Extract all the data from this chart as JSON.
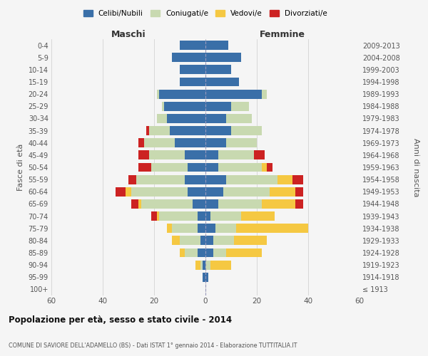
{
  "age_groups": [
    "100+",
    "95-99",
    "90-94",
    "85-89",
    "80-84",
    "75-79",
    "70-74",
    "65-69",
    "60-64",
    "55-59",
    "50-54",
    "45-49",
    "40-44",
    "35-39",
    "30-34",
    "25-29",
    "20-24",
    "15-19",
    "10-14",
    "5-9",
    "0-4"
  ],
  "birth_years": [
    "≤ 1913",
    "1914-1918",
    "1919-1923",
    "1924-1928",
    "1929-1933",
    "1934-1938",
    "1939-1943",
    "1944-1948",
    "1949-1953",
    "1954-1958",
    "1959-1963",
    "1964-1968",
    "1969-1973",
    "1974-1978",
    "1979-1983",
    "1984-1988",
    "1989-1993",
    "1994-1998",
    "1999-2003",
    "2004-2008",
    "2009-2013"
  ],
  "maschi": {
    "celibi": [
      0,
      1,
      1,
      3,
      2,
      3,
      3,
      5,
      7,
      8,
      7,
      8,
      12,
      14,
      15,
      16,
      18,
      10,
      10,
      13,
      10
    ],
    "coniugati": [
      0,
      0,
      1,
      5,
      8,
      10,
      15,
      20,
      22,
      19,
      14,
      14,
      12,
      8,
      4,
      1,
      1,
      0,
      0,
      0,
      0
    ],
    "vedovi": [
      0,
      0,
      2,
      2,
      3,
      2,
      1,
      1,
      2,
      0,
      0,
      0,
      0,
      0,
      0,
      0,
      0,
      0,
      0,
      0,
      0
    ],
    "divorziati": [
      0,
      0,
      0,
      0,
      0,
      0,
      2,
      3,
      4,
      3,
      5,
      4,
      2,
      1,
      0,
      0,
      0,
      0,
      0,
      0,
      0
    ]
  },
  "femmine": {
    "nubili": [
      0,
      1,
      0,
      3,
      3,
      4,
      2,
      5,
      7,
      8,
      5,
      5,
      8,
      10,
      8,
      10,
      22,
      13,
      10,
      14,
      9
    ],
    "coniugate": [
      0,
      0,
      2,
      5,
      8,
      8,
      12,
      17,
      18,
      20,
      17,
      14,
      12,
      12,
      10,
      7,
      2,
      0,
      0,
      0,
      0
    ],
    "vedove": [
      0,
      0,
      8,
      14,
      13,
      28,
      13,
      13,
      10,
      6,
      2,
      0,
      0,
      0,
      0,
      0,
      0,
      0,
      0,
      0,
      0
    ],
    "divorziate": [
      0,
      0,
      0,
      0,
      0,
      0,
      0,
      3,
      3,
      4,
      2,
      4,
      0,
      0,
      0,
      0,
      0,
      0,
      0,
      0,
      0
    ]
  },
  "colors": {
    "celibi": "#3a6fa8",
    "coniugati": "#c8d9b0",
    "vedovi": "#f5c842",
    "divorziati": "#cc2222"
  },
  "xlim": 60,
  "title": "Popolazione per età, sesso e stato civile - 2014",
  "subtitle": "COMUNE DI SAVIORE DELL'ADAMELLO (BS) - Dati ISTAT 1° gennaio 2014 - Elaborazione TUTTITALIA.IT",
  "ylabel_left": "Fasce di età",
  "ylabel_right": "Anni di nascita",
  "xlabel_maschi": "Maschi",
  "xlabel_femmine": "Femmine",
  "legend_labels": [
    "Celibi/Nubili",
    "Coniugati/e",
    "Vedovi/e",
    "Divorziati/e"
  ],
  "bg_color": "#f5f5f5",
  "grid_color": "#cccccc"
}
